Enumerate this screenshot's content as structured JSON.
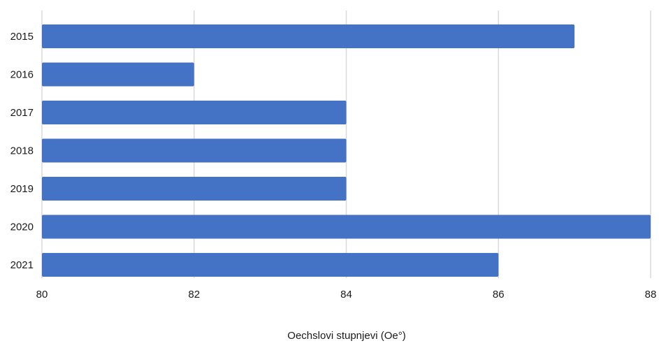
{
  "chart_data": {
    "type": "bar",
    "orientation": "horizontal",
    "title": "",
    "categories": [
      "2015",
      "2016",
      "2017",
      "2018",
      "2019",
      "2020",
      "2021"
    ],
    "values": [
      87,
      82,
      84,
      84,
      84,
      88,
      86
    ],
    "xlabel": "Oechslovi stupnjevi (Oe°)",
    "ylabel": "",
    "xlim": [
      80,
      88
    ],
    "x_ticks": [
      "80",
      "82",
      "84",
      "86",
      "88"
    ],
    "grid": "vertical",
    "legend": "none",
    "bar_color": "#4472C4",
    "grid_color": "#d9d9d9"
  }
}
